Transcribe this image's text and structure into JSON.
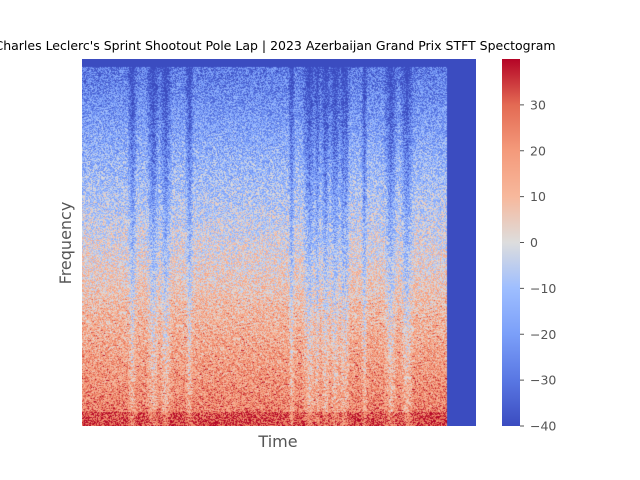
{
  "chart_data": {
    "type": "heatmap",
    "title": "Charles Leclerc's Sprint Shootout Pole Lap | 2023 Azerbaijan Grand Prix STFT Spectogram",
    "xlabel": "Time",
    "ylabel": "Frequency",
    "x_ticks": [],
    "y_ticks": [],
    "grid": false,
    "colormap": "coolwarm",
    "colors": {
      "low": "#3b4cc0",
      "mid": "#dddddd",
      "high": "#b40426",
      "background": "#ffffff"
    },
    "colorbar": {
      "range": [
        -40,
        40
      ],
      "ticks": [
        {
          "value": 30,
          "label": "30"
        },
        {
          "value": 20,
          "label": "20"
        },
        {
          "value": 10,
          "label": "10"
        },
        {
          "value": 0,
          "label": "0"
        },
        {
          "value": -10,
          "label": "−10"
        },
        {
          "value": -20,
          "label": "−20"
        },
        {
          "value": -30,
          "label": "−30"
        },
        {
          "value": -40,
          "label": "−40"
        }
      ]
    },
    "pattern": {
      "low_freq_level_db": 25,
      "high_freq_level_db": -30,
      "trailing_silence_level_db": -40,
      "vertical_quiet_bands": true,
      "horizontal_harmonics": true
    }
  }
}
